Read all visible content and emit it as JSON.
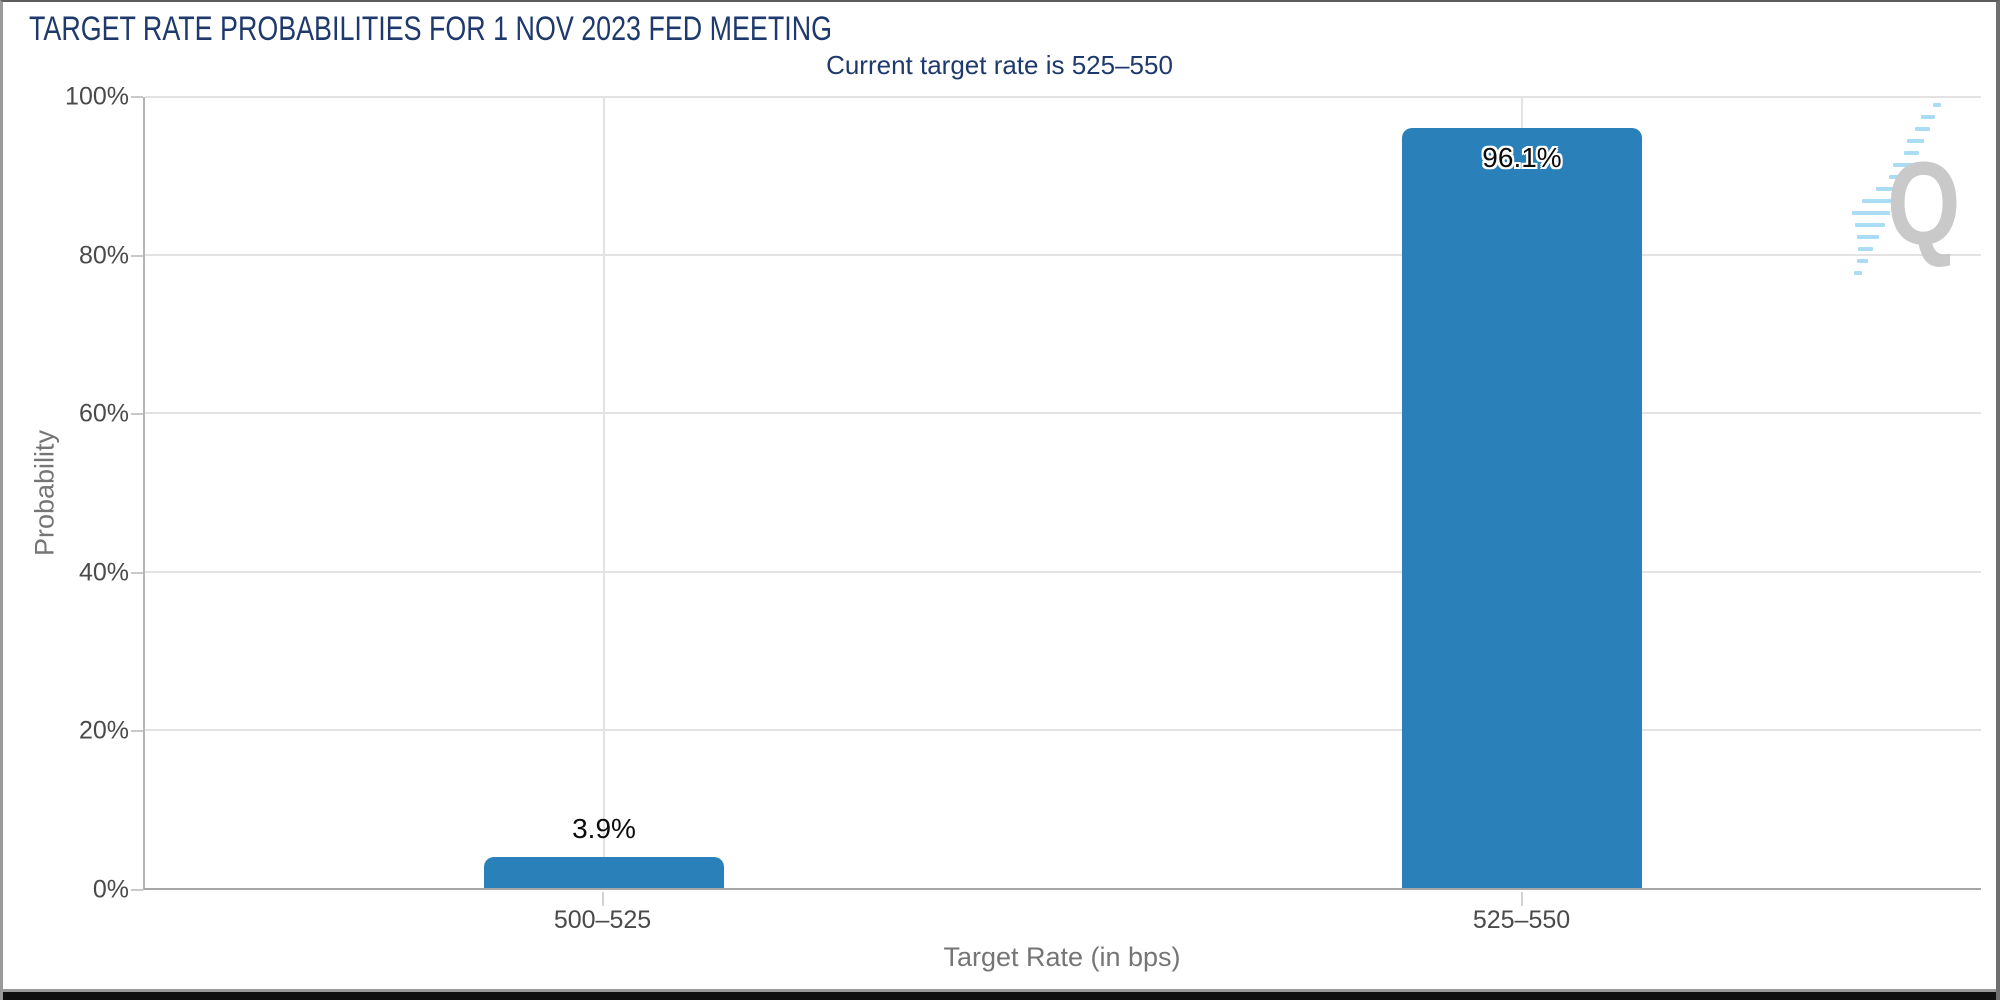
{
  "chart_data": {
    "type": "bar",
    "title": "TARGET RATE PROBABILITIES FOR 1 NOV 2023 FED MEETING",
    "subtitle": "Current target rate is 525–550",
    "categories": [
      "500–525",
      "525–550"
    ],
    "values": [
      3.9,
      96.1
    ],
    "value_labels": [
      "3.9%",
      "96.1%"
    ],
    "xlabel": "Target Rate (in bps)",
    "ylabel": "Probability",
    "ylim": [
      0,
      100
    ],
    "yticks": [
      "0%",
      "20%",
      "40%",
      "60%",
      "80%",
      "100%"
    ],
    "grid": true,
    "legend_position": "none",
    "bar_color": "#2a80b9"
  },
  "logo": {
    "letter": "Q",
    "letter_color": "#c7c7c7",
    "accent_color": "#a6dbf5"
  },
  "colors": {
    "title_navy": "#1e3a6d",
    "axis_text": "#4a4a4a",
    "axis_title_text": "#757575",
    "gridline": "#e3e3e3",
    "axis_line": "#b0b0b0",
    "value_label_text": "#0b0b0b"
  }
}
